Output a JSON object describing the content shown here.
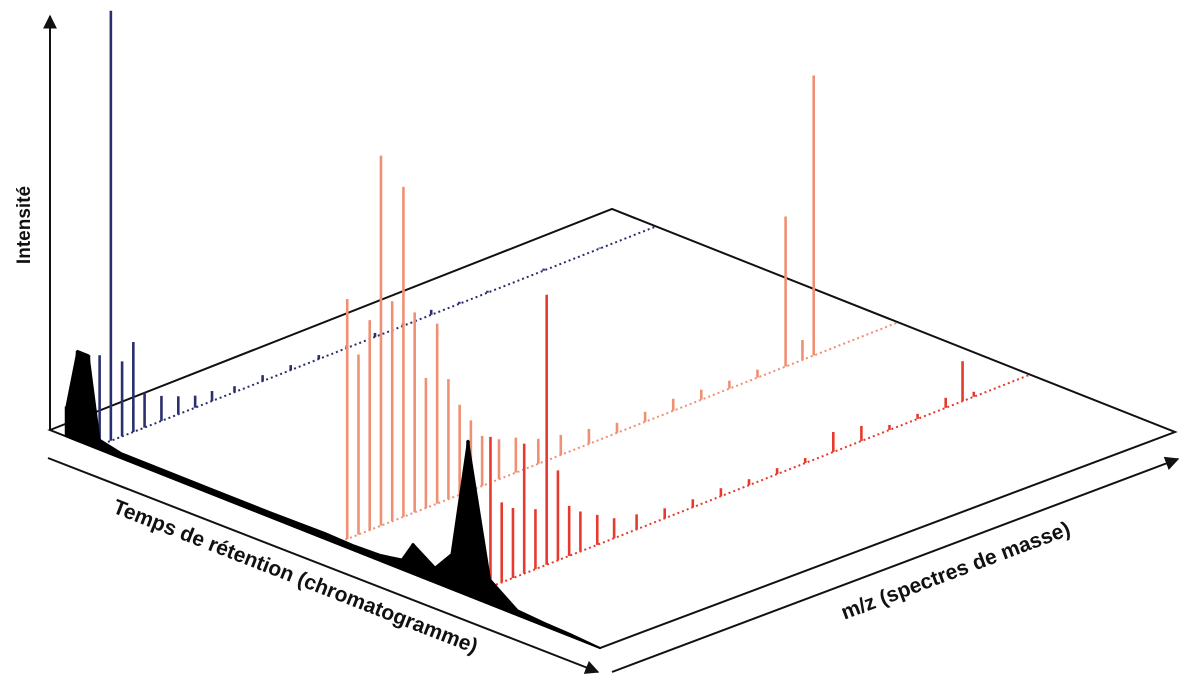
{
  "chart_data": {
    "type": "line",
    "title": "",
    "xlabel": "Temps de rétention (chromatogramme)",
    "ylabel": "Intensité",
    "zlabel": "m/z (spectres de masse)",
    "colors": {
      "chromatogram": "#000000",
      "spectrum_navy": "#2b2f6e",
      "spectrum_salmon": "#ef9074",
      "spectrum_red": "#e63a2e",
      "frame": "#111111"
    },
    "chromatogram": {
      "name": "",
      "x": [
        0.03,
        0.05,
        0.07,
        0.09,
        0.13,
        0.2,
        0.3,
        0.4,
        0.5,
        0.55,
        0.6,
        0.62,
        0.64,
        0.66,
        0.7,
        0.73,
        0.76,
        0.8,
        0.85,
        0.9,
        0.95,
        1.0
      ],
      "values": [
        0.3,
        0.9,
        0.9,
        0.1,
        0.05,
        0.05,
        0.05,
        0.05,
        0.06,
        0.05,
        0.06,
        0.08,
        0.1,
        0.3,
        0.15,
        0.35,
        1.55,
        0.25,
        0.05,
        0.03,
        0.02,
        0.0
      ]
    },
    "spectra": [
      {
        "name": "",
        "retention_position": 0.08,
        "mz": [
          0.01,
          0.03,
          0.05,
          0.07,
          0.09,
          0.12,
          0.15,
          0.18,
          0.21,
          0.25,
          0.3,
          0.35,
          0.4,
          0.45,
          0.5,
          0.55,
          0.6,
          0.65,
          0.7,
          0.8,
          0.9,
          1.0
        ],
        "intensity": [
          0.9,
          4.3,
          0.75,
          0.9,
          0.35,
          0.25,
          0.18,
          0.12,
          0.1,
          0.06,
          0.06,
          0.05,
          0.04,
          0.03,
          0.04,
          0.03,
          0.05,
          0.02,
          0.02,
          0.02,
          0.01,
          0.0
        ]
      },
      {
        "name": "",
        "retention_position": 0.52,
        "mz": [
          0.02,
          0.04,
          0.06,
          0.08,
          0.1,
          0.12,
          0.14,
          0.16,
          0.18,
          0.2,
          0.22,
          0.24,
          0.26,
          0.29,
          0.32,
          0.36,
          0.4,
          0.45,
          0.5,
          0.55,
          0.6,
          0.65,
          0.7,
          0.75,
          0.8,
          0.83,
          0.85
        ],
        "intensity": [
          2.4,
          1.8,
          2.1,
          3.7,
          2.2,
          3.3,
          2.0,
          1.3,
          1.8,
          1.2,
          0.9,
          0.7,
          0.5,
          0.4,
          0.35,
          0.25,
          0.2,
          0.15,
          0.1,
          0.1,
          0.12,
          0.1,
          0.08,
          0.08,
          1.5,
          0.2,
          2.8
        ]
      },
      {
        "name": "",
        "retention_position": 0.76,
        "mz": [
          0.02,
          0.04,
          0.06,
          0.08,
          0.1,
          0.12,
          0.14,
          0.16,
          0.18,
          0.2,
          0.23,
          0.26,
          0.3,
          0.35,
          0.4,
          0.45,
          0.5,
          0.55,
          0.6,
          0.65,
          0.7,
          0.75,
          0.8,
          0.85,
          0.88,
          0.9,
          1.0
        ],
        "intensity": [
          0.4,
          1.5,
          0.8,
          0.7,
          1.3,
          0.6,
          2.7,
          0.9,
          0.5,
          0.4,
          0.3,
          0.2,
          0.15,
          0.1,
          0.08,
          0.08,
          0.06,
          0.06,
          0.05,
          0.2,
          0.15,
          0.05,
          0.05,
          0.1,
          0.4,
          0.05,
          0.0
        ]
      }
    ]
  }
}
